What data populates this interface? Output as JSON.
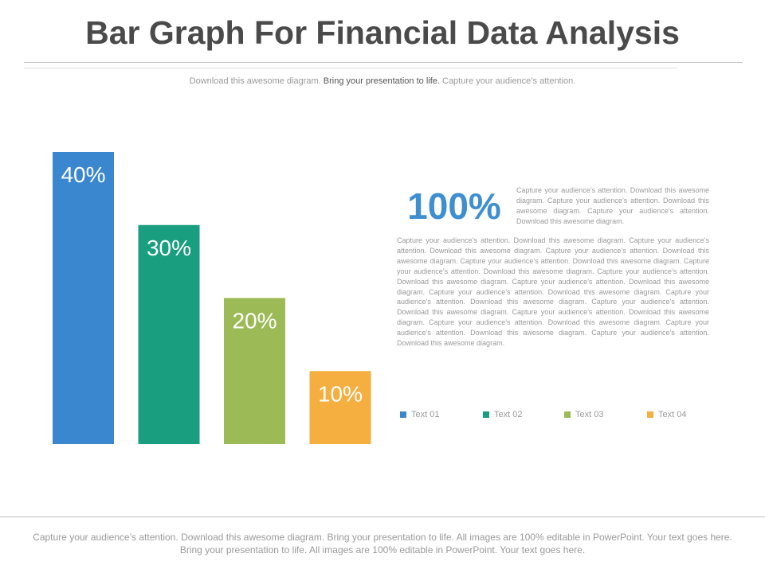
{
  "header": {
    "title": "Bar Graph For Financial Data Analysis",
    "subtitle_part1": "Download this awesome diagram.",
    "subtitle_part2": "Bring your presentation to life.",
    "subtitle_part3": "Capture your audience’s attention."
  },
  "chart_data": {
    "type": "bar",
    "categories": [
      "Text 01",
      "Text 02",
      "Text 03",
      "Text 04"
    ],
    "values": [
      40,
      30,
      20,
      10
    ],
    "value_labels": [
      "40%",
      "30%",
      "20%",
      "10%"
    ],
    "colors": [
      "#3a87cf",
      "#1a9e80",
      "#9cba55",
      "#f4af40"
    ],
    "grid": false,
    "axes_visible": false,
    "legend_placement": "below-right"
  },
  "side_panel": {
    "big_value": "100%",
    "intro_text": "Capture your audience’s attention. Download this awesome diagram. Capture your audience’s attention. Download this awesome diagram. Capture your audience’s attention. Download this awesome diagram.",
    "body_text": "Capture your audience’s attention. Download this awesome diagram. Capture your audience’s attention. Download this awesome diagram. Capture your audience’s attention. Download this awesome diagram. Capture your audience’s attention. Download this awesome diagram. Capture your audience’s attention. Download this awesome diagram. Capture your audience’s attention. Download this awesome diagram. Capture your audience’s attention. Download this awesome diagram. Capture your audience’s attention. Download this awesome diagram. Capture your audience’s attention. Download this awesome diagram. Capture your audience’s attention. Download this awesome diagram. Capture your audience’s attention. Download this awesome diagram. Capture your audience’s attention. Download this awesome diagram. Capture your audience’s attention. Download this awesome diagram. Capture your audience’s attention. Download this awesome diagram."
  },
  "legend": [
    {
      "label": "Text  01",
      "color": "#3a87cf"
    },
    {
      "label": "Text  02",
      "color": "#1a9e80"
    },
    {
      "label": "Text  03",
      "color": "#9cba55"
    },
    {
      "label": "Text  04",
      "color": "#f4af40"
    }
  ],
  "footer": {
    "text": "Capture your audience’s attention. Download this awesome diagram. Bring your presentation to life. All images are 100% editable in PowerPoint. Your text goes here. Bring your presentation to life. All images are 100% editable in PowerPoint. Your text goes here."
  }
}
